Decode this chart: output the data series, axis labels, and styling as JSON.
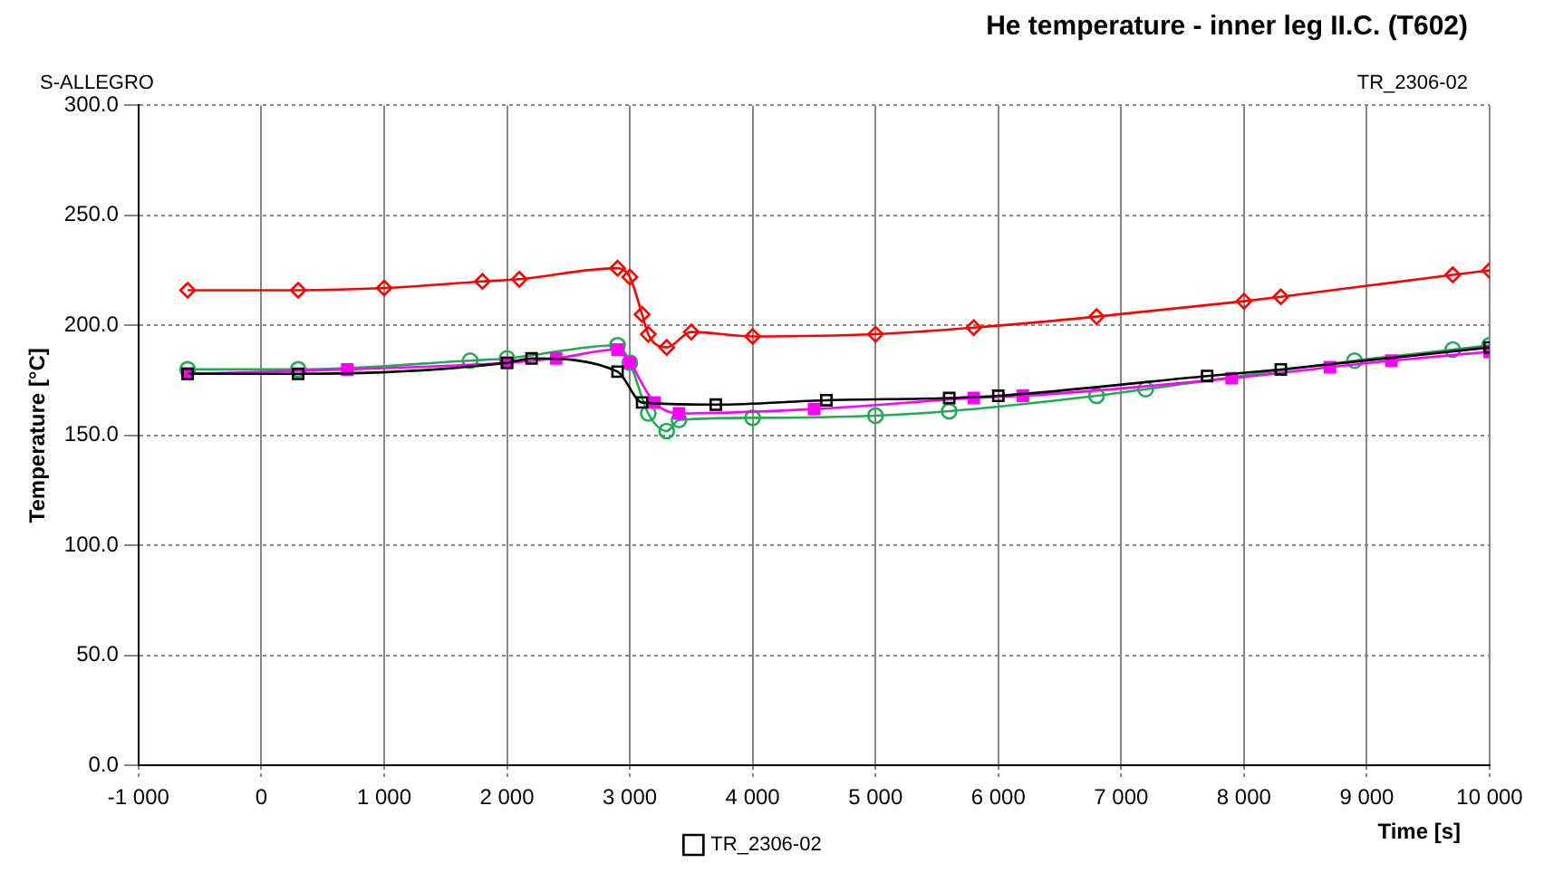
{
  "chart_data": {
    "type": "line",
    "title": "He temperature - inner leg II.C. (T602)",
    "xlabel": "Time [s]",
    "ylabel": "Temperature [°C]",
    "annotations": [
      "S-ALLEGRO",
      "TR_2306-02"
    ],
    "xlim": [
      -1000,
      10000
    ],
    "xticks": [
      {
        "value": -1000,
        "label": "-1 000"
      },
      0,
      {
        "value": 1000,
        "label": "1 000"
      },
      {
        "value": 2000,
        "label": "2 000"
      },
      {
        "value": 3000,
        "label": "3 000"
      },
      {
        "value": 4000,
        "label": "4 000"
      },
      {
        "value": 5000,
        "label": "5 000"
      },
      {
        "value": 6000,
        "label": "6 000"
      },
      {
        "value": 7000,
        "label": "7 000"
      },
      {
        "value": 8000,
        "label": "8 000"
      },
      {
        "value": 9000,
        "label": "9 000"
      },
      {
        "value": 10000,
        "label": "10 000"
      }
    ],
    "ylim": [
      0,
      300
    ],
    "yticks": [
      {
        "value": 0,
        "label": "0.0"
      },
      {
        "value": 50,
        "label": "50.0"
      },
      {
        "value": 100,
        "label": "100.0"
      },
      {
        "value": 150,
        "label": "150.0"
      },
      {
        "value": 200,
        "label": "200.0"
      },
      {
        "value": 250,
        "label": "250.0"
      },
      {
        "value": 300,
        "label": "300.0"
      }
    ],
    "grid": true,
    "legend": "bottom",
    "line_style": "solid",
    "series": [
      {
        "name": "TR_2306-02",
        "color": "#000000",
        "marker": "square",
        "x": [
          -600,
          300,
          2000,
          2200,
          2900,
          3100,
          3700,
          4600,
          5600,
          6000,
          7700,
          8300,
          10000
        ],
        "values": [
          178,
          178,
          183,
          185,
          179,
          165,
          164,
          166,
          167,
          168,
          177,
          180,
          190
        ]
      },
      {
        "color": "#ff0000",
        "marker": "diamond",
        "x": [
          -600,
          300,
          1000,
          1800,
          2100,
          2900,
          3000,
          3100,
          3150,
          3300,
          3500,
          4000,
          5000,
          5800,
          6800,
          8000,
          8300,
          9700,
          10000
        ],
        "values": [
          216,
          216,
          217,
          220,
          221,
          226,
          222,
          205,
          196,
          190,
          197,
          195,
          196,
          199,
          204,
          211,
          213,
          223,
          225
        ]
      },
      {
        "color": "#ff00ff",
        "marker": "square",
        "x": [
          -600,
          700,
          2000,
          2400,
          2900,
          3000,
          3200,
          3400,
          4500,
          5800,
          6200,
          7900,
          8700,
          9200,
          10000
        ],
        "values": [
          178,
          180,
          183,
          185,
          189,
          183,
          165,
          160,
          162,
          167,
          168,
          176,
          181,
          184,
          188
        ]
      },
      {
        "color": "#22aa55",
        "marker": "circle",
        "x": [
          -600,
          300,
          1700,
          2000,
          2900,
          3000,
          3150,
          3300,
          3400,
          4000,
          5000,
          5600,
          6800,
          7200,
          8900,
          9700,
          10000
        ],
        "values": [
          180,
          180,
          184,
          185,
          191,
          183,
          160,
          152,
          157,
          158,
          159,
          161,
          168,
          171,
          184,
          189,
          191
        ]
      }
    ]
  }
}
